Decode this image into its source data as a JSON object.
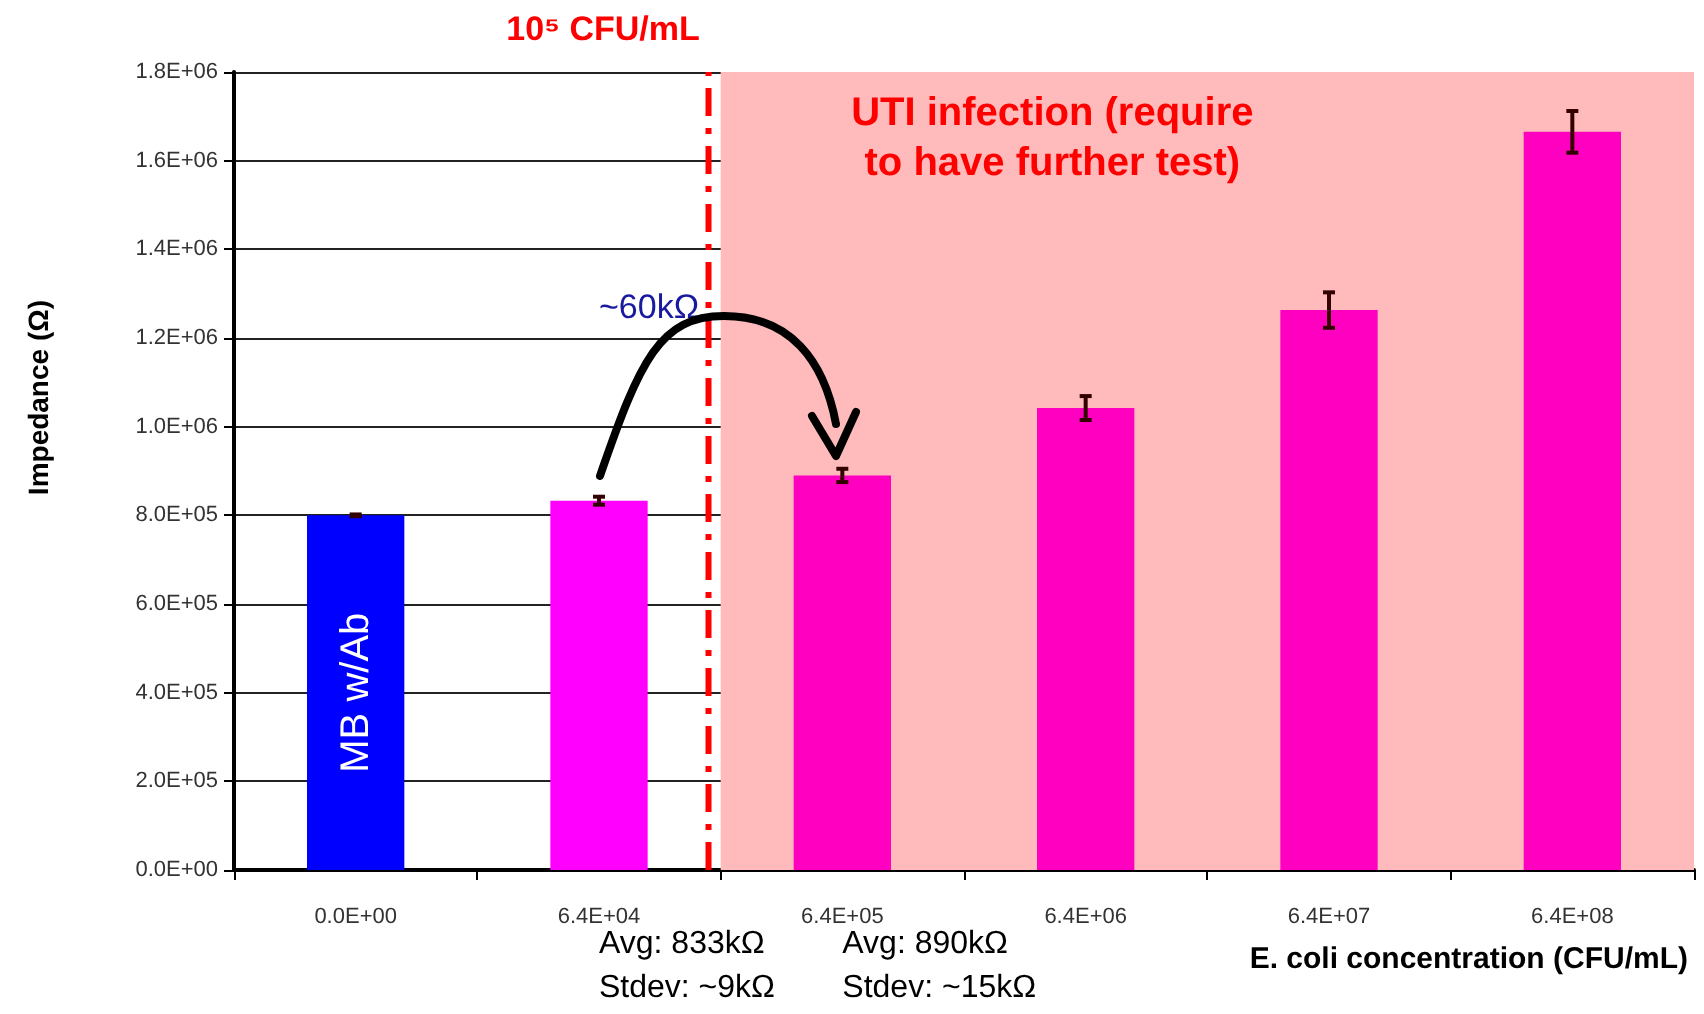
{
  "chart_data": {
    "type": "bar",
    "xlabel": "E. coli concentration (CFU/mL)",
    "ylabel": "Impedance (Ω)",
    "categories": [
      "0.0E+00",
      "6.4E+04",
      "6.4E+05",
      "6.4E+06",
      "6.4E+07",
      "6.4E+08"
    ],
    "values": [
      800000,
      833000,
      890000,
      1042000,
      1263000,
      1665000
    ],
    "colors": [
      "#0000ff",
      "#ff00ff",
      "#ff00c0",
      "#ff00c0",
      "#ff00c0",
      "#ff00c0"
    ],
    "errors": [
      2000,
      9000,
      15000,
      27000,
      40000,
      47000
    ],
    "ylim": [
      0,
      1800000
    ],
    "yticks": [
      {
        "value": 0,
        "label": "0.0E+00"
      },
      {
        "value": 200000,
        "label": "2.0E+05"
      },
      {
        "value": 400000,
        "label": "4.0E+05"
      },
      {
        "value": 600000,
        "label": "6.0E+05"
      },
      {
        "value": 800000,
        "label": "8.0E+05"
      },
      {
        "value": 1000000,
        "label": "1.0E+06"
      },
      {
        "value": 1200000,
        "label": "1.2E+06"
      },
      {
        "value": 1400000,
        "label": "1.4E+06"
      },
      {
        "value": 1600000,
        "label": "1.6E+06"
      },
      {
        "value": 1800000,
        "label": "1.8E+06"
      }
    ],
    "grid": "y",
    "ref_lines": [
      {
        "axis": "x",
        "value": "6.4E+05",
        "label": "10⁵ CFU/mL",
        "color": "#ff0000",
        "line_style": "dashed"
      }
    ],
    "bands": [
      {
        "axis": "x",
        "from": "6.4E+05",
        "to": "6.4E+08",
        "label": "UTI infection (require\nto have further test)",
        "color": "#ffbbbb"
      }
    ],
    "annotations": [
      "MB w/Ab",
      "~60kΩ",
      "Avg: 833kΩ\nStdev: ~9kΩ",
      "Avg: 890kΩ\nStdev: ~15kΩ"
    ]
  }
}
